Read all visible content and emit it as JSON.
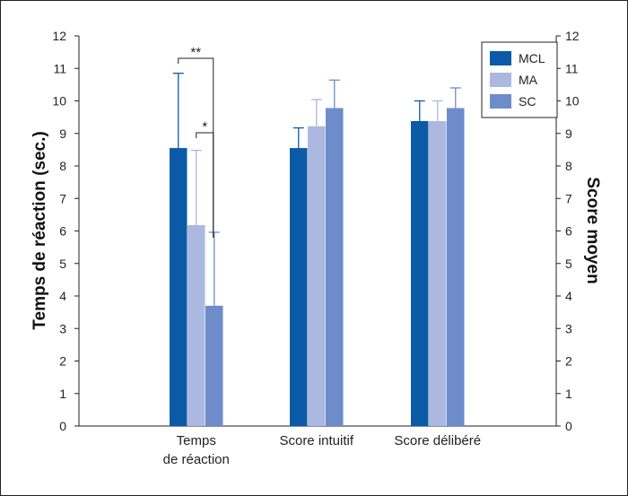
{
  "chart_data": {
    "type": "bar",
    "categories": [
      [
        "Temps",
        "de réaction"
      ],
      [
        "Score intuitif"
      ],
      [
        "Score délibéré"
      ]
    ],
    "series": [
      {
        "name": "MCL",
        "color": "#0b5aa7",
        "values": [
          8.55,
          8.55,
          9.38
        ],
        "errors": [
          2.3,
          0.62,
          0.62
        ]
      },
      {
        "name": "MA",
        "color": "#abb9e0",
        "values": [
          6.18,
          9.22,
          9.38
        ],
        "errors": [
          2.3,
          0.82,
          0.62
        ]
      },
      {
        "name": "SC",
        "color": "#6d8cc9",
        "values": [
          3.7,
          9.78,
          9.78
        ],
        "errors": [
          2.26,
          0.86,
          0.62
        ]
      }
    ],
    "ylim": [
      0,
      12
    ],
    "yticks": [
      "0",
      "1",
      "2",
      "3",
      "4",
      "5",
      "6",
      "7",
      "8",
      "9",
      "10",
      "11",
      "12"
    ],
    "ylabel_left": "Temps de réaction (sec.)",
    "ylabel_right": "Score moyen",
    "legend_position": "top-right",
    "annotations": [
      {
        "label": "**",
        "category": 0,
        "from_series": 0,
        "to_series": 2
      },
      {
        "label": "*",
        "category": 0,
        "from_series": 1,
        "to_series": 2
      }
    ]
  }
}
